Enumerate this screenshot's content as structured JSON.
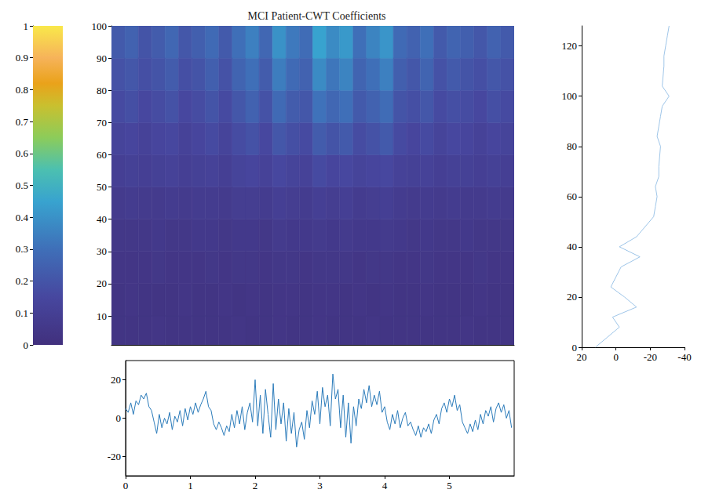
{
  "chart_data": [
    {
      "type": "heatmap",
      "title": "MCI Patient-CWT Coefficients",
      "x_bins": [
        0,
        0.2,
        0.4,
        0.6,
        0.8,
        1,
        1.2,
        1.4,
        1.6,
        1.8,
        2,
        2.2,
        2.4,
        2.6,
        2.8,
        3,
        3.2,
        3.4,
        3.6,
        3.8,
        4,
        4.2,
        4.4,
        4.6,
        4.8,
        5,
        5.2,
        5.4,
        5.6,
        5.8,
        6
      ],
      "y_bins": [
        1,
        10,
        20,
        30,
        40,
        50,
        60,
        70,
        80,
        90,
        100
      ],
      "values": [
        [
          0.03,
          0.03,
          0.03,
          0.04,
          0.03,
          0.03,
          0.03,
          0.03,
          0.03,
          0.04,
          0.03,
          0.03,
          0.04,
          0.03,
          0.03,
          0.04,
          0.03,
          0.03,
          0.03,
          0.04,
          0.03,
          0.03,
          0.03,
          0.03,
          0.03,
          0.03,
          0.04,
          0.03,
          0.03,
          0.03
        ],
        [
          0.03,
          0.04,
          0.03,
          0.03,
          0.03,
          0.04,
          0.03,
          0.03,
          0.04,
          0.03,
          0.04,
          0.03,
          0.04,
          0.04,
          0.03,
          0.04,
          0.04,
          0.03,
          0.04,
          0.03,
          0.04,
          0.03,
          0.03,
          0.04,
          0.03,
          0.03,
          0.03,
          0.04,
          0.03,
          0.03
        ],
        [
          0.04,
          0.04,
          0.04,
          0.05,
          0.04,
          0.04,
          0.04,
          0.05,
          0.04,
          0.05,
          0.05,
          0.04,
          0.05,
          0.05,
          0.04,
          0.05,
          0.05,
          0.05,
          0.04,
          0.05,
          0.05,
          0.04,
          0.04,
          0.05,
          0.04,
          0.04,
          0.04,
          0.05,
          0.04,
          0.04
        ],
        [
          0.05,
          0.05,
          0.05,
          0.06,
          0.05,
          0.05,
          0.06,
          0.06,
          0.05,
          0.06,
          0.06,
          0.05,
          0.07,
          0.06,
          0.06,
          0.07,
          0.06,
          0.07,
          0.06,
          0.06,
          0.07,
          0.06,
          0.05,
          0.06,
          0.05,
          0.05,
          0.06,
          0.05,
          0.05,
          0.05
        ],
        [
          0.07,
          0.08,
          0.07,
          0.07,
          0.08,
          0.07,
          0.08,
          0.08,
          0.07,
          0.09,
          0.09,
          0.08,
          0.1,
          0.09,
          0.08,
          0.1,
          0.09,
          0.1,
          0.08,
          0.09,
          0.1,
          0.08,
          0.07,
          0.08,
          0.07,
          0.08,
          0.07,
          0.07,
          0.08,
          0.07
        ],
        [
          0.1,
          0.11,
          0.1,
          0.11,
          0.12,
          0.1,
          0.11,
          0.12,
          0.1,
          0.13,
          0.14,
          0.12,
          0.15,
          0.13,
          0.12,
          0.16,
          0.14,
          0.15,
          0.13,
          0.14,
          0.15,
          0.12,
          0.11,
          0.12,
          0.1,
          0.11,
          0.11,
          0.1,
          0.11,
          0.1
        ],
        [
          0.13,
          0.14,
          0.12,
          0.14,
          0.15,
          0.12,
          0.14,
          0.16,
          0.13,
          0.17,
          0.19,
          0.15,
          0.21,
          0.18,
          0.16,
          0.23,
          0.2,
          0.22,
          0.17,
          0.19,
          0.22,
          0.16,
          0.14,
          0.16,
          0.13,
          0.15,
          0.14,
          0.12,
          0.14,
          0.13
        ],
        [
          0.16,
          0.18,
          0.15,
          0.17,
          0.19,
          0.15,
          0.17,
          0.2,
          0.16,
          0.21,
          0.25,
          0.19,
          0.28,
          0.23,
          0.21,
          0.31,
          0.27,
          0.3,
          0.22,
          0.25,
          0.29,
          0.2,
          0.18,
          0.21,
          0.16,
          0.18,
          0.17,
          0.15,
          0.18,
          0.16
        ],
        [
          0.19,
          0.21,
          0.18,
          0.2,
          0.23,
          0.18,
          0.2,
          0.24,
          0.19,
          0.26,
          0.3,
          0.23,
          0.34,
          0.28,
          0.25,
          0.38,
          0.32,
          0.36,
          0.26,
          0.3,
          0.35,
          0.24,
          0.21,
          0.26,
          0.19,
          0.22,
          0.2,
          0.18,
          0.21,
          0.19
        ],
        [
          0.22,
          0.25,
          0.2,
          0.23,
          0.27,
          0.21,
          0.24,
          0.28,
          0.22,
          0.3,
          0.35,
          0.27,
          0.4,
          0.33,
          0.29,
          0.45,
          0.38,
          0.42,
          0.3,
          0.36,
          0.41,
          0.28,
          0.25,
          0.3,
          0.22,
          0.26,
          0.24,
          0.21,
          0.25,
          0.22
        ]
      ],
      "xlim": [
        0,
        6
      ],
      "ylim": [
        1,
        100
      ],
      "yticks": [
        10,
        20,
        30,
        40,
        50,
        60,
        70,
        80,
        90,
        100
      ],
      "tick_labels": "y",
      "grid": false,
      "colorbar": {
        "range": [
          0,
          1
        ],
        "ticks": [
          0,
          0.1,
          0.2,
          0.3,
          0.4,
          0.5,
          0.6,
          0.7,
          0.8,
          0.9,
          1
        ]
      }
    },
    {
      "type": "line",
      "color": "#9ec5e8",
      "x": [
        12,
        5,
        -2,
        2,
        -12,
        -5,
        3,
        -3,
        -14,
        -2,
        -12,
        -22,
        -23,
        -24,
        -23,
        -25,
        -25,
        -26,
        -24,
        -25,
        -26,
        -27,
        -31,
        -27,
        -28,
        -28,
        -29,
        -30,
        -31
      ],
      "y": [
        0,
        4,
        8,
        12,
        16,
        20,
        24,
        32,
        36,
        40,
        44,
        52,
        56,
        60,
        64,
        68,
        72,
        80,
        84,
        88,
        92,
        96,
        100,
        104,
        112,
        116,
        120,
        124,
        128
      ],
      "xlim": [
        20,
        -40
      ],
      "xticks": [
        20,
        0,
        -20,
        -40
      ],
      "ylim": [
        0,
        128
      ],
      "yticks": [
        0,
        20,
        40,
        60,
        80,
        100,
        120
      ],
      "grid": false
    },
    {
      "type": "line",
      "color": "#2b7bba",
      "x": [
        0,
        0.04,
        0.08,
        0.12,
        0.16,
        0.2,
        0.24,
        0.28,
        0.32,
        0.36,
        0.4,
        0.44,
        0.48,
        0.52,
        0.56,
        0.6,
        0.64,
        0.68,
        0.72,
        0.76,
        0.8,
        0.84,
        0.88,
        0.92,
        0.96,
        1,
        1.04,
        1.08,
        1.12,
        1.16,
        1.2,
        1.24,
        1.28,
        1.32,
        1.36,
        1.4,
        1.44,
        1.48,
        1.52,
        1.56,
        1.6,
        1.64,
        1.68,
        1.72,
        1.76,
        1.8,
        1.84,
        1.88,
        1.92,
        1.96,
        2,
        2.04,
        2.08,
        2.12,
        2.16,
        2.2,
        2.24,
        2.28,
        2.32,
        2.36,
        2.4,
        2.44,
        2.48,
        2.52,
        2.56,
        2.6,
        2.64,
        2.68,
        2.72,
        2.76,
        2.8,
        2.84,
        2.88,
        2.92,
        2.96,
        3,
        3.04,
        3.08,
        3.12,
        3.16,
        3.2,
        3.24,
        3.28,
        3.32,
        3.36,
        3.4,
        3.44,
        3.48,
        3.52,
        3.56,
        3.6,
        3.64,
        3.68,
        3.72,
        3.76,
        3.8,
        3.84,
        3.88,
        3.92,
        3.96,
        4,
        4.04,
        4.08,
        4.12,
        4.16,
        4.2,
        4.24,
        4.28,
        4.32,
        4.36,
        4.4,
        4.44,
        4.48,
        4.52,
        4.56,
        4.6,
        4.64,
        4.68,
        4.72,
        4.76,
        4.8,
        4.84,
        4.88,
        4.92,
        4.96,
        5,
        5.04,
        5.08,
        5.12,
        5.16,
        5.2,
        5.24,
        5.28,
        5.32,
        5.36,
        5.4,
        5.44,
        5.48,
        5.52,
        5.56,
        5.6,
        5.64,
        5.68,
        5.72,
        5.76,
        5.8,
        5.84,
        5.88,
        5.92,
        5.96
      ],
      "values": [
        5,
        3,
        8,
        2,
        9,
        7,
        12,
        10,
        13,
        6,
        4,
        -2,
        -8,
        2,
        -5,
        0,
        -3,
        3,
        -6,
        1,
        -2,
        4,
        -4,
        5,
        -1,
        6,
        2,
        8,
        3,
        7,
        10,
        14,
        6,
        4,
        -3,
        -6,
        -2,
        -5,
        -9,
        -4,
        -7,
        2,
        -5,
        4,
        -3,
        6,
        -6,
        3,
        8,
        -2,
        20,
        -4,
        12,
        -8,
        15,
        2,
        -10,
        18,
        -6,
        10,
        -3,
        8,
        -12,
        5,
        -8,
        3,
        -15,
        -6,
        -2,
        -11,
        4,
        -5,
        9,
        2,
        14,
        -3,
        16,
        6,
        12,
        -4,
        23,
        10,
        15,
        -5,
        12,
        -10,
        8,
        -13,
        6,
        -4,
        10,
        5,
        15,
        8,
        17,
        6,
        12,
        7,
        14,
        3,
        6,
        -2,
        -6,
        2,
        -3,
        4,
        -5,
        0,
        3,
        -4,
        -2,
        -6,
        -9,
        -4,
        -10,
        -5,
        -7,
        -3,
        -8,
        -1,
        2,
        -3,
        5,
        8,
        3,
        10,
        6,
        12,
        4,
        7,
        -2,
        -5,
        -8,
        -3,
        -7,
        -1,
        -6,
        2,
        -3,
        4,
        1,
        6,
        -2,
        5,
        8,
        3,
        7,
        0,
        4,
        -5
      ],
      "xlim": [
        0,
        6
      ],
      "xticks": [
        0,
        1,
        2,
        3,
        4,
        5
      ],
      "ylim": [
        -30,
        30
      ],
      "yticks": [
        -20,
        0,
        20
      ],
      "grid": false
    }
  ]
}
